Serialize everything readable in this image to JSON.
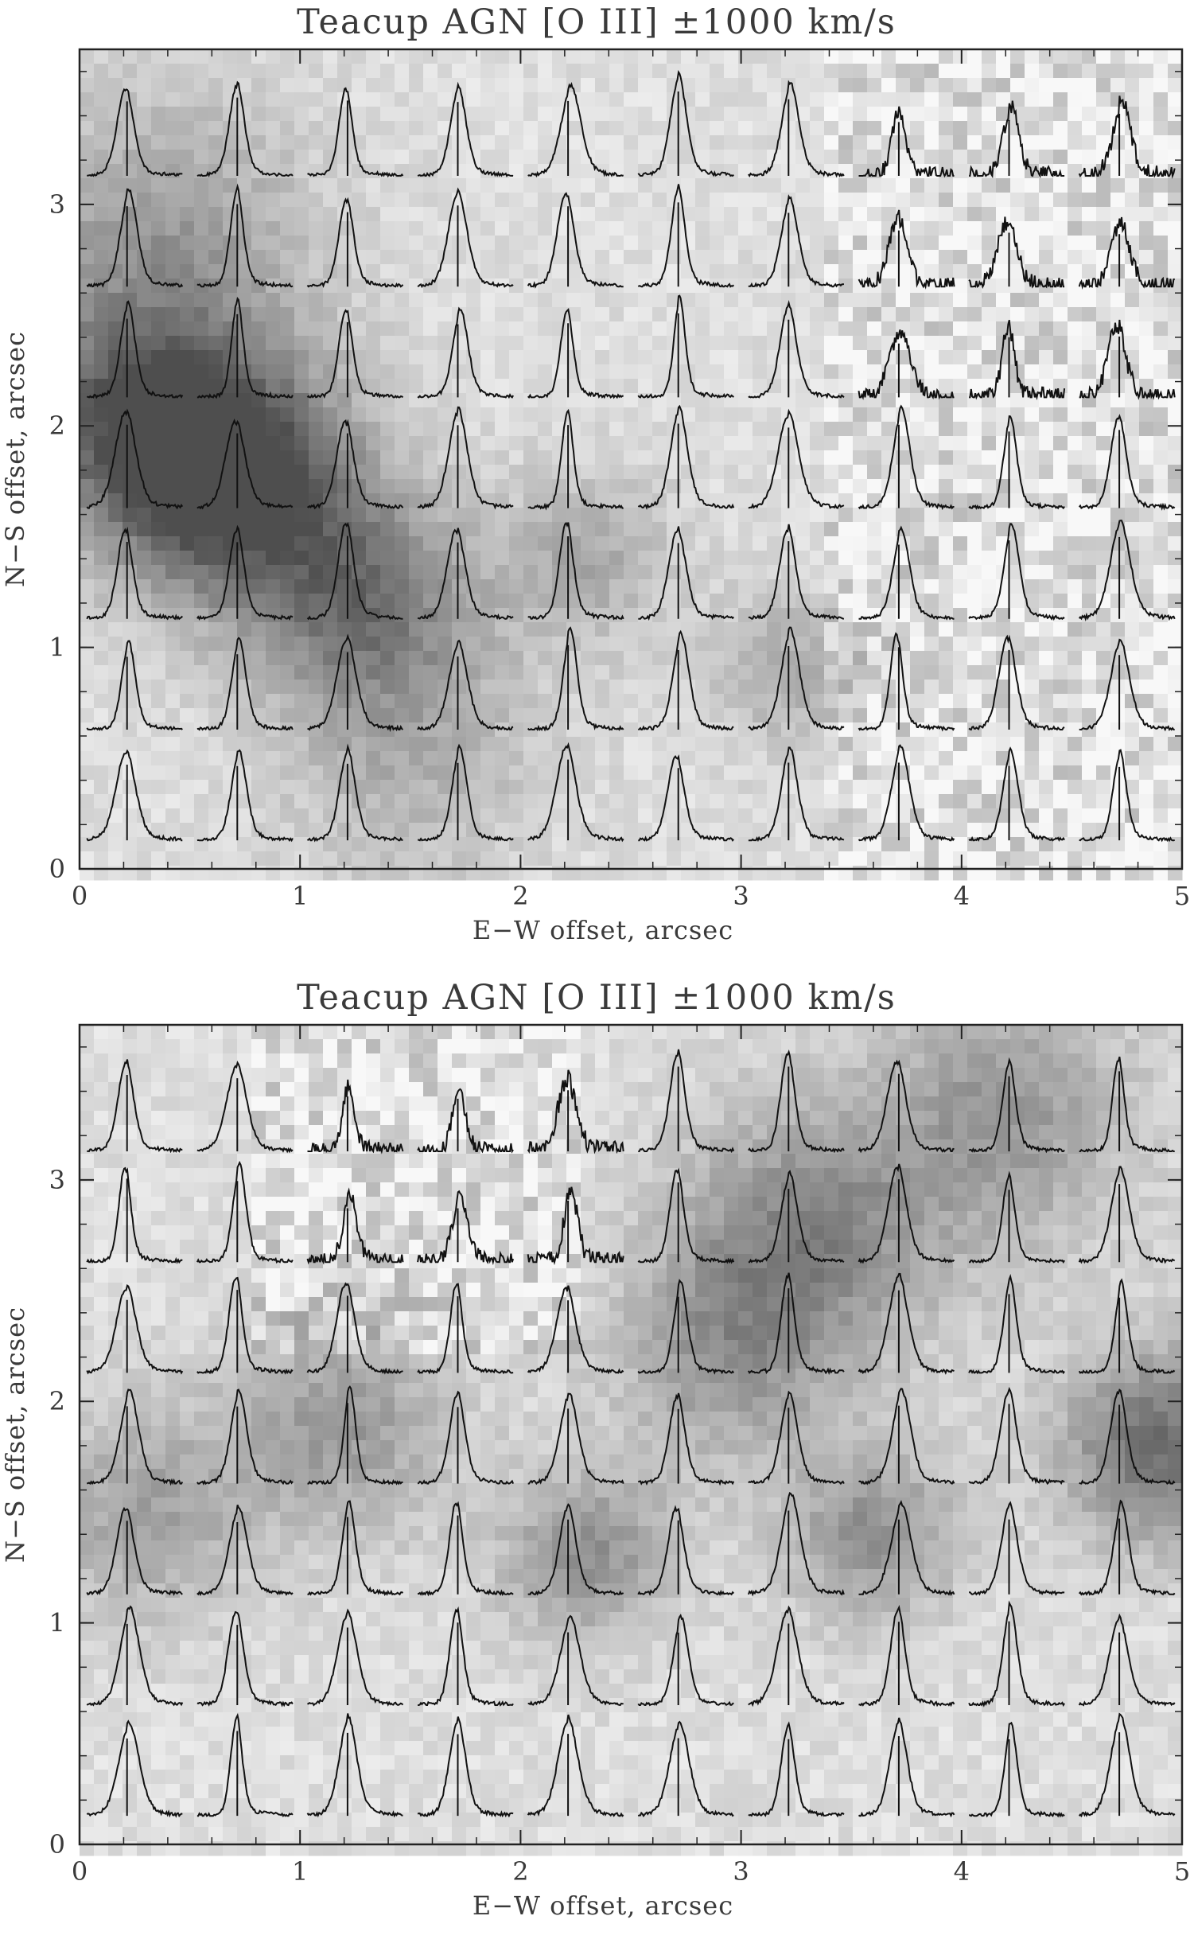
{
  "chart_data": [
    {
      "type": "heatmap",
      "title": "Teacup AGN [O III] ±1000 km/s",
      "xlabel": "E−W offset, arcsec",
      "ylabel": "N−S offset, arcsec",
      "xlim": [
        0,
        5
      ],
      "ylim": [
        0,
        3.7
      ],
      "xticks": [
        "0",
        "1",
        "2",
        "3",
        "4",
        "5"
      ],
      "yticks": [
        "0",
        "1",
        "2",
        "3"
      ],
      "colormap": "grayscale",
      "overlay": "spectral line profiles",
      "grid_columns": [
        0.25,
        0.75,
        1.25,
        1.75,
        2.25,
        2.75,
        3.25,
        3.75,
        4.25,
        4.75
      ],
      "grid_rows": [
        0.1,
        0.6,
        1.1,
        1.6,
        2.1,
        2.6,
        3.1
      ],
      "dark_regions": [
        {
          "x": 0.7,
          "y": 1.75,
          "strength": 0.9,
          "size": 0.55
        },
        {
          "x": 0.25,
          "y": 2.0,
          "strength": 0.6,
          "size": 0.5
        },
        {
          "x": 1.3,
          "y": 1.2,
          "strength": 0.55,
          "size": 0.5
        },
        {
          "x": 0.35,
          "y": 2.8,
          "strength": 0.4,
          "size": 0.7
        },
        {
          "x": 2.3,
          "y": 1.4,
          "strength": 0.3,
          "size": 0.4
        },
        {
          "x": 1.5,
          "y": 0.5,
          "strength": 0.25,
          "size": 0.6
        },
        {
          "x": 3.2,
          "y": 0.9,
          "strength": 0.3,
          "size": 0.35
        }
      ],
      "noise_from_x": 3.4
    },
    {
      "type": "heatmap",
      "title": "Teacup AGN [O III] ±1000 km/s",
      "xlabel": "E−W offset, arcsec",
      "ylabel": "N−S offset, arcsec",
      "xlim": [
        0,
        5
      ],
      "ylim": [
        0,
        3.7
      ],
      "xticks": [
        "0",
        "1",
        "2",
        "3",
        "4",
        "5"
      ],
      "yticks": [
        "0",
        "1",
        "2",
        "3"
      ],
      "colormap": "grayscale",
      "overlay": "spectral line profiles",
      "grid_columns": [
        0.25,
        0.75,
        1.25,
        1.75,
        2.25,
        2.75,
        3.25,
        3.75,
        4.25,
        4.75
      ],
      "grid_rows": [
        0.1,
        0.6,
        1.1,
        1.6,
        2.1,
        2.6,
        3.1
      ],
      "dark_regions": [
        {
          "x": 4.9,
          "y": 1.8,
          "strength": 0.65,
          "size": 0.45
        },
        {
          "x": 3.3,
          "y": 2.75,
          "strength": 0.5,
          "size": 0.6
        },
        {
          "x": 3.6,
          "y": 1.4,
          "strength": 0.45,
          "size": 0.4
        },
        {
          "x": 2.3,
          "y": 1.3,
          "strength": 0.45,
          "size": 0.4
        },
        {
          "x": 1.2,
          "y": 1.9,
          "strength": 0.4,
          "size": 0.5
        },
        {
          "x": 4.2,
          "y": 3.3,
          "strength": 0.4,
          "size": 0.6
        },
        {
          "x": 0.3,
          "y": 1.5,
          "strength": 0.35,
          "size": 0.5
        },
        {
          "x": 2.9,
          "y": 2.2,
          "strength": 0.35,
          "size": 0.5
        }
      ],
      "noise_from_x": 0,
      "noise_region": {
        "xmin": 0.8,
        "xmax": 2.3,
        "ymin": 2.2,
        "ymax": 3.7
      }
    }
  ]
}
